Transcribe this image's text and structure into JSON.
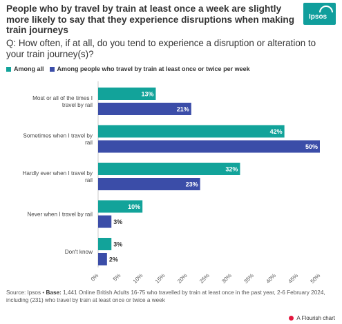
{
  "title": "People who by travel by train at least once a week are slightly more likely to say that they experience disruptions when making train journeys",
  "subtitle": "Q: How often, if at all, do you tend to experience a disruption or alteration to your train journey(s)?",
  "logo": {
    "text": "Ipsos",
    "color": "#109e9c"
  },
  "legend": [
    {
      "label": "Among all",
      "color": "#12a39a"
    },
    {
      "label": "Among people who travel by train at least once or twice per week",
      "color": "#3b4da8"
    }
  ],
  "chart_data": {
    "type": "bar",
    "orientation": "horizontal",
    "categories": [
      "Most or all of the times I travel by rail",
      "Sometimes when I travel by rail",
      "Hardly ever when I travel by rail",
      "Never when I travel by rail",
      "Don't know"
    ],
    "series": [
      {
        "name": "Among all",
        "color": "#12a39a",
        "values": [
          13,
          42,
          32,
          10,
          3
        ],
        "labels": [
          "13%",
          "42%",
          "32%",
          "10%",
          "3%"
        ]
      },
      {
        "name": "Among people who travel by train at least once or twice per week",
        "color": "#3b4da8",
        "values": [
          21,
          50,
          23,
          3,
          2
        ],
        "labels": [
          "21%",
          "50%",
          "23%",
          "3%",
          "2%"
        ]
      }
    ],
    "xlim": [
      0,
      50
    ],
    "xticks": [
      "0%",
      "5%",
      "10%",
      "15%",
      "20%",
      "25%",
      "30%",
      "35%",
      "40%",
      "45%",
      "50%"
    ],
    "grid": false
  },
  "footer": {
    "source_prefix": "Source: Ipsos • ",
    "base_label": "Base:",
    "base_text": " 1,441 Online British Adults 16-75 who travelled by train at least once in the past year, 2-6 February 2024, including (231) who travel by train at least once or twice a week",
    "credit": "A Flourish chart"
  }
}
